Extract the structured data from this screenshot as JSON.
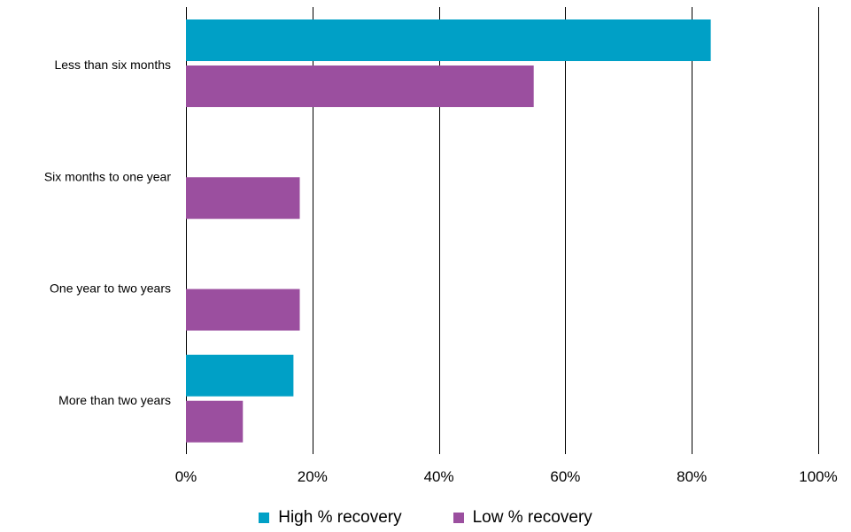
{
  "chart_data": {
    "type": "bar",
    "orientation": "horizontal",
    "categories": [
      "Less than six months",
      "Six months to one year",
      "One year to two years",
      "More than two years"
    ],
    "series": [
      {
        "name": "High % recovery",
        "color": "#00A0C6",
        "values": [
          83,
          0,
          0,
          17
        ]
      },
      {
        "name": "Low % recovery",
        "color": "#9B4F9F",
        "values": [
          55,
          18,
          18,
          9
        ]
      }
    ],
    "xlim": [
      0,
      100
    ],
    "xticks": [
      0,
      20,
      40,
      60,
      80,
      100
    ],
    "tick_labels": [
      "0%",
      "20%",
      "40%",
      "60%",
      "80%",
      "100%"
    ],
    "grid": true,
    "legend_position": "bottom"
  }
}
